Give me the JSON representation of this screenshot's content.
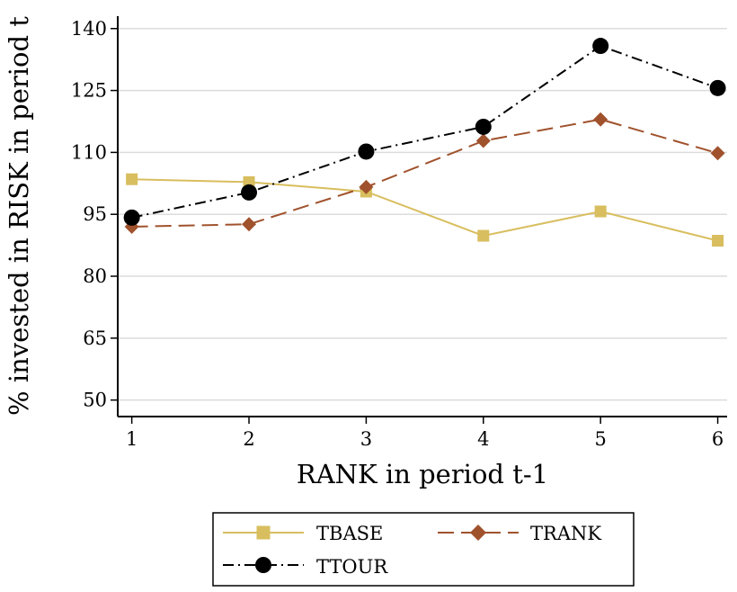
{
  "chart_data": {
    "type": "line",
    "title": "",
    "xlabel": "RANK in period t-1",
    "ylabel": "% invested in RISK in period t",
    "x": [
      1,
      2,
      3,
      4,
      5,
      6
    ],
    "xlim": [
      0.88,
      6.08
    ],
    "ylim": [
      46,
      143
    ],
    "xticks": [
      1,
      2,
      3,
      4,
      5,
      6
    ],
    "yticks": [
      50,
      65,
      80,
      95,
      110,
      125,
      140
    ],
    "grid": "horizontal",
    "legend_position": "bottom",
    "series": [
      {
        "name": "TBASE",
        "values": [
          103.5,
          102.8,
          100.5,
          89.8,
          95.7,
          88.6
        ],
        "color": "#d8be5e",
        "line_style": "solid",
        "marker": "square"
      },
      {
        "name": "TRANK",
        "values": [
          92,
          92.6,
          101.6,
          112.8,
          118,
          109.8
        ],
        "color": "#a0522d",
        "line_style": "dashed",
        "marker": "diamond"
      },
      {
        "name": "TTOUR",
        "values": [
          94.2,
          100.3,
          110.2,
          116.2,
          135.8,
          125.6
        ],
        "color": "#000000",
        "line_style": "dash-dot",
        "marker": "circle"
      }
    ]
  }
}
